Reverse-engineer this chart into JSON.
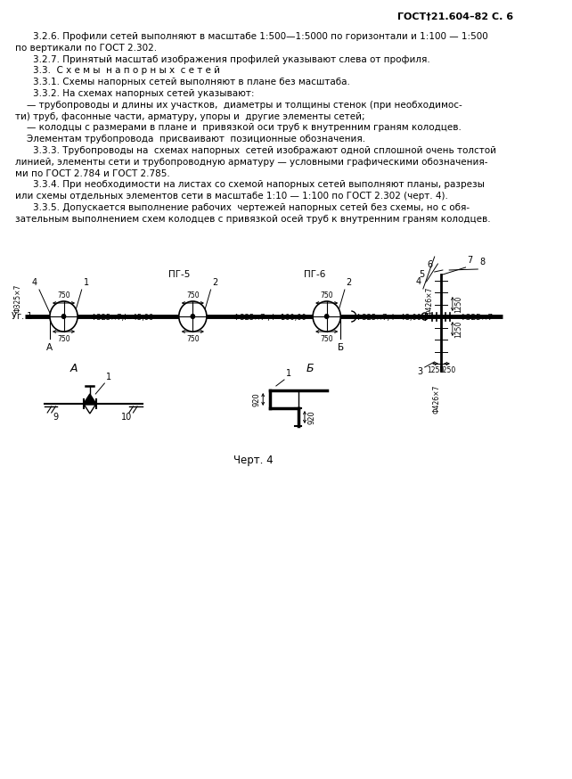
{
  "page_header": "ГОСТ†21.604–82 С. 6",
  "body_text_lines": [
    {
      "x": 40,
      "indent": true,
      "text": "3.2.6. Профили сетей выполняют в масштабе 1:500—1:5000 по горизонтали и 1:100 — 1:500"
    },
    {
      "x": 18,
      "indent": false,
      "text": "по вертикали по ГОСТ 2.302."
    },
    {
      "x": 40,
      "indent": true,
      "text": "3.2.7. Принятый масштаб изображения профилей указывают слева от профиля."
    },
    {
      "x": 40,
      "indent": true,
      "text": "3.3.  С х е м ы  н а п о р н ы х  с е т е й"
    },
    {
      "x": 40,
      "indent": true,
      "text": "3.3.1. Схемы напорных сетей выполняют в плане без масштаба."
    },
    {
      "x": 40,
      "indent": true,
      "text": "3.3.2. На схемах напорных сетей указывают:"
    },
    {
      "x": 18,
      "indent": false,
      "text": "    — трубопроводы и длины их участков,  диаметры и толщины стенок (при необходимос-"
    },
    {
      "x": 18,
      "indent": false,
      "text": "ти) труб, фасонные части, арматуру, упоры и  другие элементы сетей;"
    },
    {
      "x": 18,
      "indent": false,
      "text": "    — колодцы с размерами в плане и  привязкой оси труб к внутренним граням колодцев."
    },
    {
      "x": 18,
      "indent": false,
      "text": "    Элементам трубопровода  присваивают  позиционные обозначения."
    },
    {
      "x": 40,
      "indent": true,
      "text": "3.3.3. Трубопроводы на  схемах напорных  сетей изображают одной сплошной очень толстой"
    },
    {
      "x": 18,
      "indent": false,
      "text": "линией, элементы сети и трубопроводную арматуру — условными графическими обозначения-"
    },
    {
      "x": 18,
      "indent": false,
      "text": "ми по ГОСТ 2.784 и ГОСТ 2.785."
    },
    {
      "x": 40,
      "indent": true,
      "text": "3.3.4. При необходимости на листах со схемой напорных сетей выполняют планы, разрезы"
    },
    {
      "x": 18,
      "indent": false,
      "text": "или схемы отдельных элементов сети в масштабе 1:10 — 1:100 по ГОСТ 2.302 (черт. 4)."
    },
    {
      "x": 40,
      "indent": true,
      "text": "3.3.5. Допускается выполнение рабочих  чертежей напорных сетей без схемы, но с обя-"
    },
    {
      "x": 18,
      "indent": false,
      "text": "зательным выполнением схем колодцев с привязкой осей труб к внутренним граням колодцев."
    }
  ],
  "bg_color": "#ffffff",
  "text_color": "#000000",
  "font_size": 7.5,
  "header_font_size": 8.0,
  "drawing_label": "Черт. 4",
  "drawing_label_fontsize": 8.5
}
